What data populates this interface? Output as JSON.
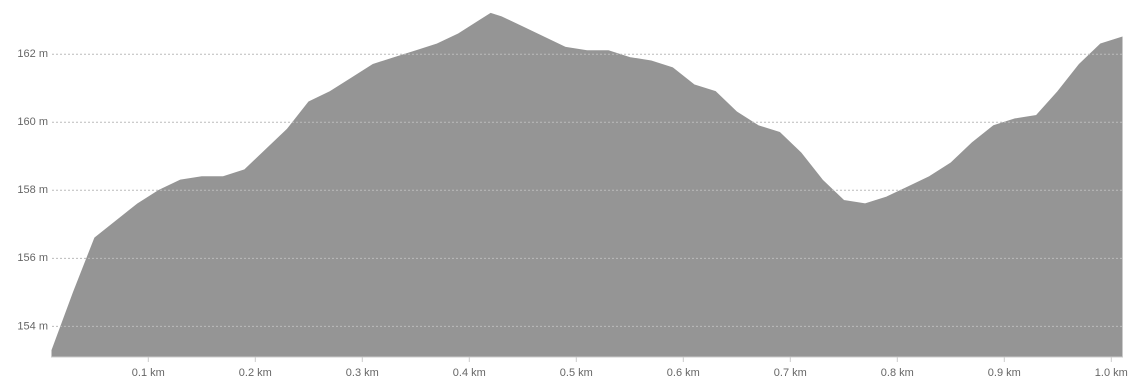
{
  "chart_data": {
    "type": "area",
    "x": [
      0.01,
      0.03,
      0.05,
      0.07,
      0.09,
      0.11,
      0.13,
      0.15,
      0.17,
      0.19,
      0.21,
      0.23,
      0.25,
      0.27,
      0.29,
      0.31,
      0.33,
      0.35,
      0.37,
      0.39,
      0.41,
      0.42,
      0.43,
      0.45,
      0.47,
      0.49,
      0.51,
      0.53,
      0.55,
      0.57,
      0.59,
      0.61,
      0.63,
      0.65,
      0.67,
      0.69,
      0.71,
      0.73,
      0.75,
      0.77,
      0.79,
      0.81,
      0.83,
      0.85,
      0.87,
      0.89,
      0.91,
      0.93,
      0.95,
      0.97,
      0.99,
      1.01
    ],
    "values": [
      153.3,
      155.0,
      156.6,
      157.1,
      157.6,
      158.0,
      158.3,
      158.4,
      158.4,
      158.6,
      159.2,
      159.8,
      160.6,
      160.9,
      161.3,
      161.7,
      161.9,
      162.1,
      162.3,
      162.6,
      163.0,
      163.2,
      163.1,
      162.8,
      162.5,
      162.2,
      162.1,
      162.1,
      161.9,
      161.8,
      161.6,
      161.1,
      160.9,
      160.3,
      159.9,
      159.7,
      159.1,
      158.3,
      157.7,
      157.6,
      157.8,
      158.1,
      158.4,
      158.8,
      159.4,
      159.9,
      160.1,
      160.2,
      160.9,
      161.7,
      162.3,
      162.5
    ],
    "color": "#959595",
    "xlim": [
      0.01,
      1.01
    ],
    "ylim": [
      153.1,
      163.3
    ],
    "xticks": [
      {
        "value": 0.1,
        "label": "0.1 km"
      },
      {
        "value": 0.2,
        "label": "0.2 km"
      },
      {
        "value": 0.3,
        "label": "0.3 km"
      },
      {
        "value": 0.4,
        "label": "0.4 km"
      },
      {
        "value": 0.5,
        "label": "0.5 km"
      },
      {
        "value": 0.6,
        "label": "0.6 km"
      },
      {
        "value": 0.7,
        "label": "0.7 km"
      },
      {
        "value": 0.8,
        "label": "0.8 km"
      },
      {
        "value": 0.9,
        "label": "0.9 km"
      },
      {
        "value": 1.0,
        "label": "1.0 km"
      }
    ],
    "yticks": [
      {
        "value": 154,
        "label": "154 m"
      },
      {
        "value": 156,
        "label": "156 m"
      },
      {
        "value": 158,
        "label": "158 m"
      },
      {
        "value": 160,
        "label": "160 m"
      },
      {
        "value": 162,
        "label": "162 m"
      }
    ],
    "grid": true
  }
}
